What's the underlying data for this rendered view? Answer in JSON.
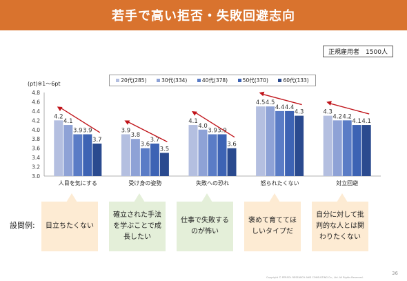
{
  "slide": {
    "title": "若手で高い拒否・失敗回避志向",
    "respondents": "正規雇用者　1500人",
    "unit_note": "(pt)※1～6pt",
    "examples_label": "設問例:",
    "copyright": "Copyright ©  PERSOL  RESEARCH AND CONSULTING Co., Ltd. All Rights Reserved.",
    "page_number": "36"
  },
  "examples": [
    {
      "text": "目立ちたくない",
      "color": "orange"
    },
    {
      "text": "確立された手法を学ぶことで成長したい",
      "color": "green"
    },
    {
      "text": "仕事で失敗するのが怖い",
      "color": "green"
    },
    {
      "text": "褒めて育ててほしいタイプだ",
      "color": "orange"
    },
    {
      "text": "自分に対して批判的な人とは関わりたくない",
      "color": "orange"
    }
  ],
  "chart_data": {
    "type": "bar",
    "categories": [
      "人目を気にする",
      "受け身の姿勢",
      "失敗への恐れ",
      "怒られたくない",
      "対立回避"
    ],
    "series": [
      {
        "name": "20代(285)",
        "color": "#b4bfe0",
        "values": [
          4.2,
          3.9,
          4.1,
          4.5,
          4.3
        ]
      },
      {
        "name": "30代(334)",
        "color": "#8ea2d6",
        "values": [
          4.1,
          3.8,
          4.0,
          4.5,
          4.2
        ]
      },
      {
        "name": "40代(378)",
        "color": "#5a7cc6",
        "values": [
          3.9,
          3.6,
          3.9,
          4.4,
          4.2
        ]
      },
      {
        "name": "50代(370)",
        "color": "#3d63b4",
        "values": [
          3.9,
          3.7,
          3.9,
          4.4,
          4.1
        ]
      },
      {
        "name": "60代(133)",
        "color": "#2a4a8f",
        "values": [
          3.7,
          3.5,
          3.6,
          4.3,
          4.1
        ]
      }
    ],
    "ylim": [
      3.0,
      4.8
    ],
    "yticks": [
      3.0,
      3.2,
      3.4,
      3.6,
      3.8,
      4.0,
      4.2,
      4.4,
      4.6,
      4.8
    ],
    "ytick_labels": [
      "3.0",
      "3.2",
      "3.4",
      "3.6",
      "3.8",
      "4.0",
      "4.2",
      "4.4",
      "4.6",
      "4.8"
    ],
    "data_label_decimals": 1,
    "grid": false,
    "legend_position": "top",
    "trend_arrow_color": "#c0141a",
    "trend_arrows": "one red arrow per category pointing up-left from the oldest to the youngest age group"
  }
}
